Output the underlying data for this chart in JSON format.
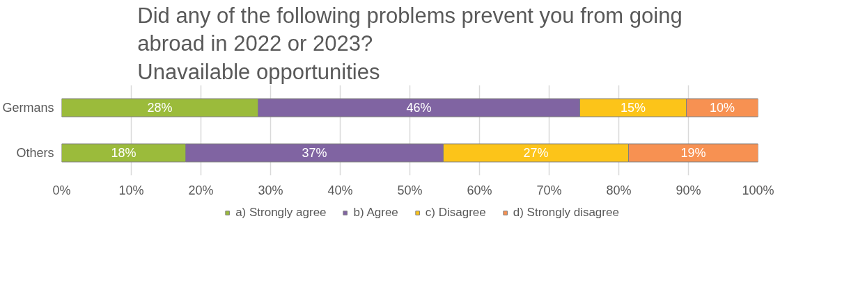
{
  "chart_data": {
    "type": "bar",
    "orientation": "horizontal",
    "stacked": true,
    "title": "Did any of the following problems prevent you from going\nabroad in 2022 or 2023?\nUnavailable opportunities",
    "categories": [
      "Germans",
      "Others"
    ],
    "series": [
      {
        "name": "a) Strongly agree",
        "color": "#9bbb3b",
        "values": [
          28.2,
          17.8
        ],
        "value_labels": [
          "28%",
          "18%"
        ]
      },
      {
        "name": "b) Agree",
        "color": "#8064a2",
        "values": [
          46.2,
          37.0
        ],
        "value_labels": [
          "46%",
          "37%"
        ]
      },
      {
        "name": "c) Disagree",
        "color": "#fcc419",
        "values": [
          15.3,
          26.6
        ],
        "value_labels": [
          "15%",
          "27%"
        ]
      },
      {
        "name": "d) Strongly disagree",
        "color": "#f79152",
        "values": [
          10.3,
          18.6
        ],
        "value_labels": [
          "10%",
          "19%"
        ]
      }
    ],
    "xlim": [
      0,
      100
    ],
    "xticks": [
      {
        "value": 0,
        "label": "0%"
      },
      {
        "value": 10,
        "label": "10%"
      },
      {
        "value": 20,
        "label": "20%"
      },
      {
        "value": 30,
        "label": "30%"
      },
      {
        "value": 40,
        "label": "40%"
      },
      {
        "value": 50,
        "label": "50%"
      },
      {
        "value": 60,
        "label": "60%"
      },
      {
        "value": 70,
        "label": "70%"
      },
      {
        "value": 80,
        "label": "80%"
      },
      {
        "value": 90,
        "label": "90%"
      },
      {
        "value": 100,
        "label": "100%"
      }
    ],
    "grid": "x",
    "legend": "bottom"
  }
}
